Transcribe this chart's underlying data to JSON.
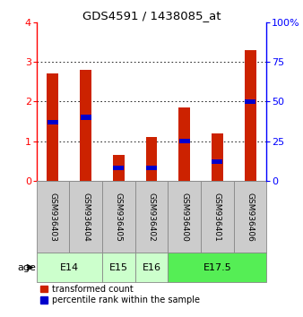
{
  "title": "GDS4591 / 1438085_at",
  "samples": [
    "GSM936403",
    "GSM936404",
    "GSM936405",
    "GSM936402",
    "GSM936400",
    "GSM936401",
    "GSM936406"
  ],
  "transformed_count": [
    2.7,
    2.8,
    0.65,
    1.1,
    1.85,
    1.2,
    3.3
  ],
  "percentile_rank": [
    37,
    40,
    8,
    8,
    25,
    12,
    50
  ],
  "age_groups": [
    {
      "label": "E14",
      "color": "#ccffcc",
      "start": 0,
      "end": 2
    },
    {
      "label": "E15",
      "color": "#ccffcc",
      "start": 2,
      "end": 3
    },
    {
      "label": "E16",
      "color": "#ccffcc",
      "start": 3,
      "end": 4
    },
    {
      "label": "E17.5",
      "color": "#55ee55",
      "start": 4,
      "end": 7
    }
  ],
  "left_ylim": [
    0,
    4
  ],
  "right_ylim": [
    0,
    100
  ],
  "left_yticks": [
    0,
    1,
    2,
    3,
    4
  ],
  "right_yticks": [
    0,
    25,
    50,
    75,
    100
  ],
  "right_yticklabels": [
    "0",
    "25",
    "50",
    "75",
    "100%"
  ],
  "grid_values": [
    1,
    2,
    3
  ],
  "bar_color_red": "#cc2200",
  "bar_color_blue": "#0000cc",
  "bar_width": 0.35,
  "sample_box_color": "#cccccc",
  "sample_box_edge": "#888888",
  "plot_bg": "#ffffff",
  "legend_red": "transformed count",
  "legend_blue": "percentile rank within the sample"
}
